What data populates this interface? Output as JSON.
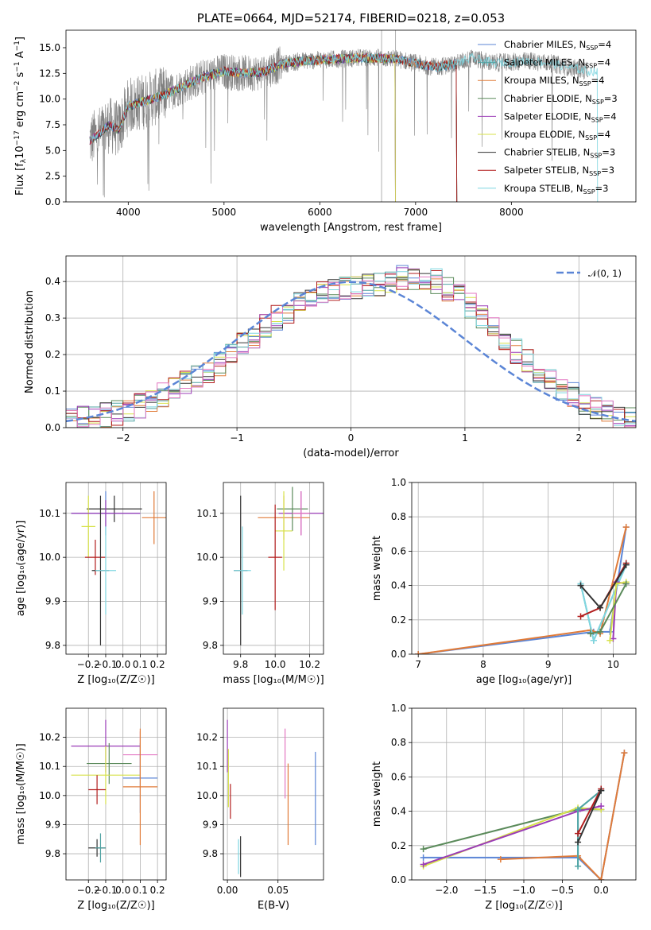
{
  "chart_data": [
    {
      "type": "line",
      "panel": "spectrum",
      "title": "PLATE=0664, MJD=52174, FIBERID=0218, z=0.053",
      "xlabel": "wavelength [Angstrom, rest frame]",
      "ylabel_main": "Flux [f",
      "ylabel_sub": "λ",
      "ylabel_rest": "10",
      "ylabel_exp": "−17",
      "ylabel_tail": " erg cm",
      "ylabel_exp2": "−2",
      "ylabel_tail2": " s",
      "ylabel_exp3": "−1",
      "ylabel_tail3": " A",
      "ylabel_exp4": "−1",
      "ylabel_end": "]",
      "xlim": [
        3350,
        9300
      ],
      "ylim": [
        0,
        16.7
      ],
      "xticks": [
        4000,
        5000,
        6000,
        7000,
        8000
      ],
      "xtick_labels": [
        "4000",
        "5000",
        "6000",
        "7000",
        "8000"
      ],
      "yticks": [
        0,
        2.5,
        5,
        7.5,
        10,
        12.5,
        15
      ],
      "ytick_labels": [
        "0.0",
        "2.5",
        "5.0",
        "7.5",
        "10.0",
        "12.5",
        "15.0"
      ],
      "data_color": "#808080",
      "data_anchor_x": [
        3600,
        3700,
        3800,
        3900,
        4000,
        4200,
        4400,
        4600,
        4800,
        5000,
        5200,
        5400,
        5600,
        5800,
        6000,
        6200,
        6400,
        6600,
        6800,
        7000,
        7200,
        7400,
        7600,
        7800,
        8000,
        8200,
        8400,
        8600,
        8800
      ],
      "data_anchor_y": [
        6.0,
        6.6,
        7.5,
        7.0,
        9.3,
        9.9,
        10.5,
        11.4,
        12.2,
        12.7,
        12.5,
        12.6,
        13.4,
        13.7,
        13.8,
        13.9,
        14.0,
        14.0,
        13.9,
        13.5,
        13.1,
        13.4,
        14.0,
        13.5,
        13.6,
        13.7,
        13.5,
        13.1,
        12.7
      ],
      "legend": [
        {
          "label": "Chabrier MILES, N",
          "sub": "SSP",
          "tail": "=4",
          "color": "#5b85d6"
        },
        {
          "label": "Salpeter MILES, N",
          "sub": "SSP",
          "tail": "=4",
          "color": "#4fa3a3"
        },
        {
          "label": "Kroupa MILES, N",
          "sub": "SSP",
          "tail": "=4",
          "color": "#e07b39"
        },
        {
          "label": "Chabrier ELODIE, N",
          "sub": "SSP",
          "tail": "=3",
          "color": "#5a8a5a"
        },
        {
          "label": "Salpeter ELODIE, N",
          "sub": "SSP",
          "tail": "=4",
          "color": "#9b3cb7"
        },
        {
          "label": "Kroupa ELODIE, N",
          "sub": "SSP",
          "tail": "=4",
          "color": "#d7e24a"
        },
        {
          "label": "Chabrier STELIB, N",
          "sub": "SSP",
          "tail": "=3",
          "color": "#333333"
        },
        {
          "label": "Salpeter STELIB, N",
          "sub": "SSP",
          "tail": "=3",
          "color": "#b21c1c"
        },
        {
          "label": "Kroupa STELIB, N",
          "sub": "SSP",
          "tail": "=3",
          "color": "#7fd6e0"
        }
      ],
      "legend_placement": "top-right"
    },
    {
      "type": "histogram",
      "panel": "residuals",
      "xlabel": "(data-model)/error",
      "ylabel": "Normed distribution",
      "xlim": [
        -2.5,
        2.5
      ],
      "ylim": [
        0,
        0.47
      ],
      "xticks": [
        -2,
        -1,
        0,
        1,
        2
      ],
      "xtick_labels": [
        "−2",
        "−1",
        "0",
        "1",
        "2"
      ],
      "yticks": [
        0,
        0.1,
        0.2,
        0.3,
        0.4
      ],
      "ytick_labels": [
        "0.0",
        "0.1",
        "0.2",
        "0.3",
        "0.4"
      ],
      "grid": true,
      "bin_width": 0.1,
      "bin_start": -2.5,
      "envelope": [
        0.02,
        0.025,
        0.03,
        0.035,
        0.04,
        0.05,
        0.06,
        0.075,
        0.09,
        0.105,
        0.12,
        0.14,
        0.155,
        0.175,
        0.2,
        0.225,
        0.25,
        0.275,
        0.3,
        0.32,
        0.34,
        0.355,
        0.365,
        0.375,
        0.38,
        0.385,
        0.39,
        0.395,
        0.405,
        0.41,
        0.41,
        0.405,
        0.4,
        0.38,
        0.36,
        0.335,
        0.3,
        0.27,
        0.24,
        0.21,
        0.18,
        0.155,
        0.13,
        0.11,
        0.09,
        0.07,
        0.055,
        0.04,
        0.03,
        0.02
      ],
      "series_colors": [
        "#5b85d6",
        "#4fa3a3",
        "#e07b39",
        "#5a8a5a",
        "#9b3cb7",
        "#d7e24a",
        "#333333",
        "#b21c1c",
        "#7fd6e0",
        "#e377c2"
      ],
      "gaussian": {
        "label": "𝒩(0, 1)",
        "color": "#5b85d6",
        "mu": 0,
        "sigma": 1
      },
      "legend_placement": "top-right"
    },
    {
      "type": "scatter",
      "panel": "age_vs_Z",
      "xlabel": "Z [log₁₀(Z/Z☉)]",
      "ylabel": "age  [log₁₀(age/yr)]",
      "xlim": [
        -0.33,
        0.25
      ],
      "ylim": [
        9.78,
        10.17
      ],
      "xticks": [
        -0.2,
        -0.1,
        0.0,
        0.1,
        0.2
      ],
      "xtick_labels": [
        "−0.2",
        "−0.1",
        "0.0",
        "0.1",
        "0.2"
      ],
      "yticks": [
        9.8,
        9.9,
        10.0,
        10.1
      ],
      "ytick_labels": [
        "9.8",
        "9.9",
        "10.0",
        "10.1"
      ],
      "points": [
        {
          "x": -0.1,
          "y": 10.1,
          "xerr": 0.2,
          "yerr": 0.05,
          "color": "#5b85d6"
        },
        {
          "x": 0.18,
          "y": 10.09,
          "xerr": 0.07,
          "yerr": 0.06,
          "color": "#e07b39"
        },
        {
          "x": -0.05,
          "y": 10.11,
          "xerr": 0.16,
          "yerr": 0.03,
          "color": "#333333"
        },
        {
          "x": -0.2,
          "y": 10.07,
          "xerr": 0.04,
          "yerr": 0.07,
          "color": "#d7e24a"
        },
        {
          "x": -0.1,
          "y": 10.1,
          "xerr": 0.2,
          "yerr": 0.03,
          "color": "#9b3cb7"
        },
        {
          "x": -0.16,
          "y": 10.0,
          "xerr": 0.06,
          "yerr": 0.04,
          "color": "#b21c1c"
        },
        {
          "x": -0.13,
          "y": 9.97,
          "xerr": 0.05,
          "yerr": 0.17,
          "color": "#333333"
        },
        {
          "x": -0.1,
          "y": 9.97,
          "xerr": 0.06,
          "yerr": 0.1,
          "color": "#7fd6e0"
        }
      ]
    },
    {
      "type": "scatter",
      "panel": "age_vs_mass",
      "xlabel": "mass [log₁₀(M/M☉)]",
      "xlim": [
        9.7,
        10.28
      ],
      "ylim": [
        9.78,
        10.17
      ],
      "xticks": [
        9.8,
        10.0,
        10.2
      ],
      "xtick_labels": [
        "9.8",
        "10.0",
        "10.2"
      ],
      "yticks": [
        9.8,
        9.9,
        10.0,
        10.1
      ],
      "ytick_labels": [
        "9.8",
        "9.9",
        "10.0",
        "10.1"
      ],
      "points": [
        {
          "x": 10.15,
          "y": 10.1,
          "xerr": 0.13,
          "yerr": 0.05,
          "color": "#9b3cb7"
        },
        {
          "x": 10.05,
          "y": 10.09,
          "xerr": 0.15,
          "yerr": 0.05,
          "color": "#e07b39"
        },
        {
          "x": 10.1,
          "y": 10.11,
          "xerr": 0.09,
          "yerr": 0.05,
          "color": "#5a8a5a"
        },
        {
          "x": 10.15,
          "y": 10.1,
          "xerr": 0.05,
          "yerr": 0.05,
          "color": "#e377c2"
        },
        {
          "x": 10.05,
          "y": 10.06,
          "xerr": 0.05,
          "yerr": 0.09,
          "color": "#d7e24a"
        },
        {
          "x": 10.0,
          "y": 10.0,
          "xerr": 0.04,
          "yerr": 0.12,
          "color": "#b21c1c"
        },
        {
          "x": 9.8,
          "y": 9.97,
          "xerr": 0.04,
          "yerr": 0.17,
          "color": "#333333"
        },
        {
          "x": 9.81,
          "y": 9.97,
          "xerr": 0.05,
          "yerr": 0.1,
          "color": "#7fd6e0"
        }
      ]
    },
    {
      "type": "line",
      "panel": "massweight_vs_age",
      "xlabel": "age  [log₁₀(age/yr)]",
      "ylabel": "mass weight",
      "xlim": [
        6.9,
        10.35
      ],
      "ylim": [
        0,
        1.0
      ],
      "xticks": [
        7,
        8,
        9,
        10
      ],
      "xtick_labels": [
        "7",
        "8",
        "9",
        "10"
      ],
      "yticks": [
        0,
        0.2,
        0.4,
        0.6,
        0.8,
        1.0
      ],
      "ytick_labels": [
        "0.0",
        "0.2",
        "0.4",
        "0.6",
        "0.8",
        "1.0"
      ],
      "series": [
        {
          "color": "#5b85d6",
          "x": [
            7.0,
            9.7,
            9.95,
            10.2
          ],
          "y": [
            0.0,
            0.13,
            0.13,
            0.74
          ]
        },
        {
          "color": "#e07b39",
          "x": [
            7.0,
            9.65,
            9.8,
            10.2
          ],
          "y": [
            0.0,
            0.14,
            0.12,
            0.74
          ]
        },
        {
          "color": "#4fa3a3",
          "x": [
            9.5,
            9.7,
            10.2
          ],
          "y": [
            0.41,
            0.08,
            0.52
          ]
        },
        {
          "color": "#7fd6e0",
          "x": [
            9.5,
            9.7,
            10.2
          ],
          "y": [
            0.41,
            0.08,
            0.52
          ]
        },
        {
          "color": "#b21c1c",
          "x": [
            9.5,
            9.8,
            10.2
          ],
          "y": [
            0.22,
            0.27,
            0.53
          ]
        },
        {
          "color": "#9b3cb7",
          "x": [
            10.0,
            10.05,
            10.2
          ],
          "y": [
            0.09,
            0.42,
            0.41
          ]
        },
        {
          "color": "#d7e24a",
          "x": [
            9.95,
            10.05,
            10.2
          ],
          "y": [
            0.08,
            0.41,
            0.42
          ]
        },
        {
          "color": "#5a8a5a",
          "x": [
            9.65,
            9.8,
            10.2
          ],
          "y": [
            0.12,
            0.13,
            0.41
          ]
        },
        {
          "color": "#333333",
          "x": [
            9.5,
            9.8,
            10.2
          ],
          "y": [
            0.4,
            0.27,
            0.52
          ]
        }
      ]
    },
    {
      "type": "scatter",
      "panel": "mass_vs_Z",
      "xlabel": "Z [log₁₀(Z/Z☉)]",
      "ylabel": "mass [log₁₀(M/M☉)]",
      "xlim": [
        -0.33,
        0.25
      ],
      "ylim": [
        9.71,
        10.3
      ],
      "xticks": [
        -0.2,
        -0.1,
        0.0,
        0.1,
        0.2
      ],
      "xtick_labels": [
        "−0.2",
        "−0.1",
        "0.0",
        "0.1",
        "0.2"
      ],
      "yticks": [
        9.8,
        9.9,
        10.0,
        10.1,
        10.2
      ],
      "ytick_labels": [
        "9.8",
        "9.9",
        "10.0",
        "10.1",
        "10.2"
      ],
      "points": [
        {
          "x": -0.1,
          "y": 10.17,
          "xerr": 0.2,
          "yerr": 0.09,
          "color": "#9b3cb7"
        },
        {
          "x": 0.1,
          "y": 10.14,
          "xerr": 0.1,
          "yerr": 0.08,
          "color": "#e377c2"
        },
        {
          "x": -0.08,
          "y": 10.11,
          "xerr": 0.13,
          "yerr": 0.07,
          "color": "#5a8a5a"
        },
        {
          "x": -0.1,
          "y": 10.07,
          "xerr": 0.2,
          "yerr": 0.1,
          "color": "#d7e24a"
        },
        {
          "x": 0.1,
          "y": 10.06,
          "xerr": 0.1,
          "yerr": 0.12,
          "color": "#5b85d6"
        },
        {
          "x": 0.1,
          "y": 10.03,
          "xerr": 0.1,
          "yerr": 0.2,
          "color": "#e07b39"
        },
        {
          "x": -0.15,
          "y": 10.02,
          "xerr": 0.05,
          "yerr": 0.05,
          "color": "#b21c1c"
        },
        {
          "x": -0.15,
          "y": 9.82,
          "xerr": 0.05,
          "yerr": 0.03,
          "color": "#333333"
        },
        {
          "x": -0.13,
          "y": 9.82,
          "xerr": 0.03,
          "yerr": 0.05,
          "color": "#4fa3a3"
        }
      ]
    },
    {
      "type": "scatter",
      "panel": "mass_vs_ebv",
      "xlabel": "E(B-V)",
      "xlim": [
        -0.004,
        0.095
      ],
      "ylim": [
        9.71,
        10.3
      ],
      "xticks": [
        0.0,
        0.05
      ],
      "xtick_labels": [
        "0.00",
        "0.05"
      ],
      "yticks": [
        9.8,
        9.9,
        10.0,
        10.1,
        10.2
      ],
      "ytick_labels": [
        "9.8",
        "9.9",
        "10.0",
        "10.1",
        "10.2"
      ],
      "points": [
        {
          "x": 0.0,
          "y": 10.17,
          "yerr": 0.09,
          "color": "#9b3cb7"
        },
        {
          "x": 0.001,
          "y": 10.06,
          "yerr": 0.1,
          "color": "#d7e24a"
        },
        {
          "x": 0.003,
          "y": 9.98,
          "yerr": 0.06,
          "color": "#b21c1c"
        },
        {
          "x": 0.011,
          "y": 9.79,
          "yerr": 0.06,
          "color": "#7fd6e0"
        },
        {
          "x": 0.013,
          "y": 9.79,
          "yerr": 0.07,
          "color": "#333333"
        },
        {
          "x": 0.057,
          "y": 10.11,
          "yerr": 0.12,
          "color": "#e377c2"
        },
        {
          "x": 0.06,
          "y": 9.97,
          "yerr": 0.14,
          "color": "#e07b39"
        },
        {
          "x": 0.087,
          "y": 9.99,
          "yerr": 0.16,
          "color": "#5b85d6"
        }
      ]
    },
    {
      "type": "line",
      "panel": "massweight_vs_Z",
      "xlabel": "Z [log₁₀(Z/Z☉)]",
      "ylabel": "mass weight",
      "xlim": [
        -2.45,
        0.45
      ],
      "ylim": [
        0,
        1.0
      ],
      "xticks": [
        -2.0,
        -1.5,
        -1.0,
        -0.5,
        0.0
      ],
      "xtick_labels": [
        "−2.0",
        "−1.5",
        "−1.0",
        "−0.5",
        "0.0"
      ],
      "yticks": [
        0,
        0.2,
        0.4,
        0.6,
        0.8,
        1.0
      ],
      "ytick_labels": [
        "0.0",
        "0.2",
        "0.4",
        "0.6",
        "0.8",
        "1.0"
      ],
      "series": [
        {
          "color": "#5b85d6",
          "x": [
            -2.3,
            -0.3,
            0.0,
            0.3
          ],
          "y": [
            0.13,
            0.13,
            0.0,
            0.74
          ]
        },
        {
          "color": "#e07b39",
          "x": [
            -1.3,
            -0.3,
            0.0,
            0.3
          ],
          "y": [
            0.12,
            0.14,
            0.0,
            0.74
          ]
        },
        {
          "color": "#5a8a5a",
          "x": [
            -2.3,
            -0.3,
            0.0
          ],
          "y": [
            0.18,
            0.41,
            0.41
          ]
        },
        {
          "color": "#d7e24a",
          "x": [
            -2.3,
            -0.3,
            0.0
          ],
          "y": [
            0.08,
            0.42,
            0.41
          ]
        },
        {
          "color": "#9b3cb7",
          "x": [
            -2.3,
            -0.3,
            0.0
          ],
          "y": [
            0.09,
            0.4,
            0.43
          ]
        },
        {
          "color": "#7fd6e0",
          "x": [
            -0.3,
            -0.3,
            0.0
          ],
          "y": [
            0.08,
            0.41,
            0.52
          ]
        },
        {
          "color": "#4fa3a3",
          "x": [
            -0.3,
            -0.3,
            0.0
          ],
          "y": [
            0.08,
            0.41,
            0.52
          ]
        },
        {
          "color": "#b21c1c",
          "x": [
            -0.3,
            0.0
          ],
          "y": [
            0.27,
            0.53
          ]
        },
        {
          "color": "#333333",
          "x": [
            -0.3,
            0.0
          ],
          "y": [
            0.22,
            0.52
          ]
        }
      ]
    }
  ]
}
